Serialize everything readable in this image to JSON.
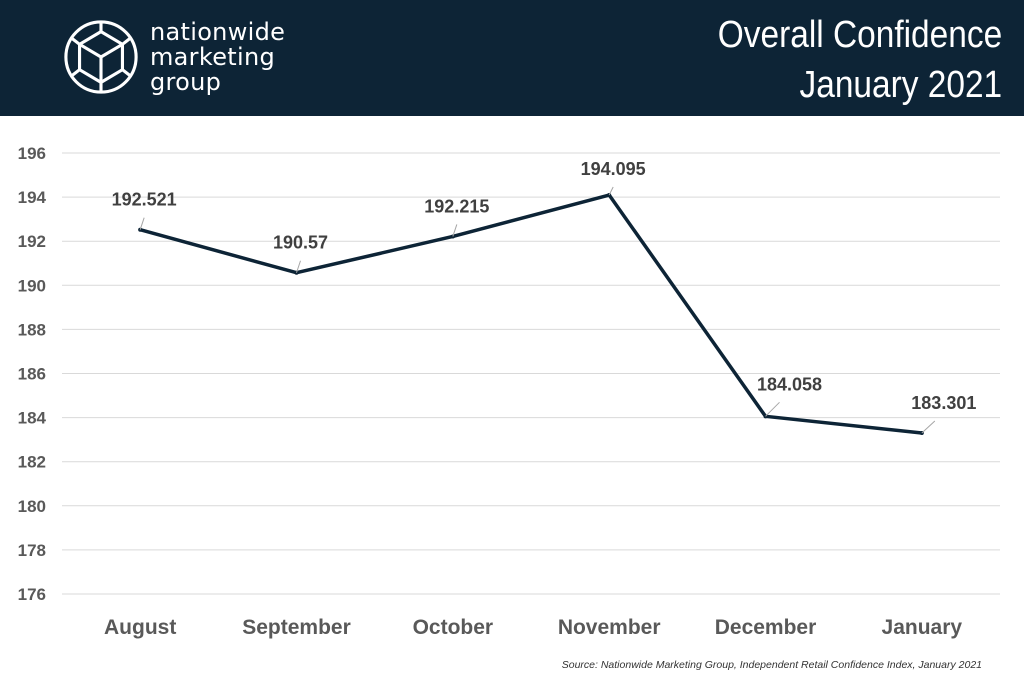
{
  "header": {
    "brand_lines": [
      "nationwide",
      "marketing",
      "group"
    ],
    "title_line1": "Overall Confidence",
    "title_line2": "January 2021",
    "logo_icon": "geometric-cube-logo-icon"
  },
  "colors": {
    "header_bg": "#0d2436",
    "line": "#0d2436",
    "grid": "#d9d9d9",
    "axis_text": "#595959",
    "label_text": "#404040"
  },
  "chart_data": {
    "type": "line",
    "title": "Overall Confidence January 2021",
    "categories": [
      "August",
      "September",
      "October",
      "November",
      "December",
      "January"
    ],
    "series": [
      {
        "values": [
          192.521,
          190.57,
          192.215,
          194.095,
          184.058,
          183.301
        ]
      }
    ],
    "data_labels": [
      "192.521",
      "190.57",
      "192.215",
      "194.095",
      "184.058",
      "183.301"
    ],
    "ylim": [
      176,
      196
    ],
    "yticks": [
      196,
      194,
      192,
      190,
      188,
      186,
      184,
      182,
      180,
      178,
      176
    ],
    "grid": true,
    "legend": "none",
    "xlabel": "",
    "ylabel": ""
  },
  "source": "Source: Nationwide Marketing Group, Independent Retail Confidence Index, January 2021"
}
